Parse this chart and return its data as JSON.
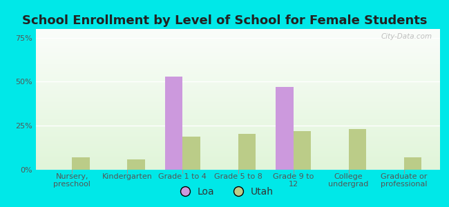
{
  "title": "School Enrollment by Level of School for Female Students",
  "categories": [
    "Nursery,\npreschool",
    "Kindergarten",
    "Grade 1 to 4",
    "Grade 5 to 8",
    "Grade 9 to\n12",
    "College\nundergrad",
    "Graduate or\nprofessional"
  ],
  "loa_values": [
    0,
    0,
    53.0,
    0,
    47.0,
    0,
    0
  ],
  "utah_values": [
    7.0,
    6.0,
    19.0,
    20.5,
    22.0,
    23.0,
    7.0
  ],
  "loa_color": "#cc99dd",
  "utah_color": "#bbcc88",
  "background_color": "#00e8e8",
  "ylim": [
    0,
    80
  ],
  "yticks": [
    0,
    25,
    50,
    75
  ],
  "ytick_labels": [
    "0%",
    "25%",
    "50%",
    "75%"
  ],
  "bar_width": 0.32,
  "title_fontsize": 13,
  "tick_fontsize": 8,
  "legend_fontsize": 10,
  "watermark": "City-Data.com"
}
